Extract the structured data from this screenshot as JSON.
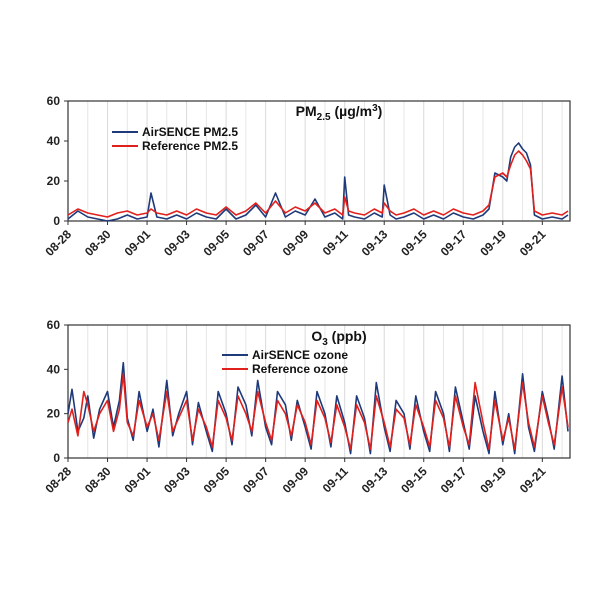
{
  "chart_data": [
    {
      "type": "line",
      "title": "PM",
      "title_sub": "2.5",
      "title_rest": " (µg/m",
      "title_sup": "3",
      "title_end": ")",
      "ylim": [
        0,
        60
      ],
      "yticks": [
        0,
        20,
        40,
        60
      ],
      "xlim": [
        "08-28",
        "09-22"
      ],
      "xticks": [
        "08-28",
        "08-30",
        "09-01",
        "09-03",
        "09-05",
        "09-07",
        "09-09",
        "09-11",
        "09-13",
        "09-15",
        "09-17",
        "09-19",
        "09-21"
      ],
      "grid": "vertical",
      "legend_position": "top-left",
      "series": [
        {
          "name": "AirSENCE PM2.5",
          "color": "#1f3a7a",
          "x": [
            "08-28",
            "08-28.5",
            "08-29",
            "08-29.5",
            "08-30",
            "08-30.5",
            "08-31",
            "08-31.5",
            "09-01",
            "09-01.2",
            "09-01.5",
            "09-02",
            "09-02.5",
            "09-03",
            "09-03.5",
            "09-04",
            "09-04.5",
            "09-05",
            "09-05.5",
            "09-06",
            "09-06.5",
            "09-07",
            "09-07.5",
            "09-08",
            "09-08.5",
            "09-09",
            "09-09.5",
            "09-10",
            "09-10.5",
            "09-10.9",
            "09-11",
            "09-11.2",
            "09-11.5",
            "09-12",
            "09-12.5",
            "09-12.9",
            "09-13",
            "09-13.3",
            "09-13.6",
            "09-14",
            "09-14.5",
            "09-15",
            "09-15.5",
            "09-16",
            "09-16.5",
            "09-17",
            "09-17.5",
            "09-18",
            "09-18.3",
            "09-18.6",
            "09-19",
            "09-19.2",
            "09-19.4",
            "09-19.6",
            "09-19.8",
            "09-20",
            "09-20.2",
            "09-20.4",
            "09-20.6",
            "09-21",
            "09-21.5",
            "09-22",
            "09-22.3"
          ],
          "values": [
            1,
            5,
            2,
            1,
            0,
            1,
            3,
            1,
            2,
            14,
            2,
            1,
            3,
            1,
            4,
            2,
            1,
            6,
            1,
            3,
            8,
            2,
            14,
            2,
            5,
            3,
            11,
            2,
            4,
            1,
            22,
            3,
            2,
            1,
            4,
            2,
            18,
            3,
            1,
            2,
            4,
            1,
            3,
            1,
            4,
            2,
            1,
            3,
            6,
            24,
            22,
            20,
            32,
            37,
            39,
            36,
            34,
            28,
            3,
            1,
            2,
            1,
            3
          ]
        },
        {
          "name": "Reference PM2.5",
          "color": "#e0201c",
          "x": [
            "08-28",
            "08-28.5",
            "08-29",
            "08-29.5",
            "08-30",
            "08-30.5",
            "08-31",
            "08-31.5",
            "09-01",
            "09-01.2",
            "09-01.5",
            "09-02",
            "09-02.5",
            "09-03",
            "09-03.5",
            "09-04",
            "09-04.5",
            "09-05",
            "09-05.5",
            "09-06",
            "09-06.5",
            "09-07",
            "09-07.5",
            "09-08",
            "09-08.5",
            "09-09",
            "09-09.5",
            "09-10",
            "09-10.5",
            "09-10.9",
            "09-11",
            "09-11.2",
            "09-11.5",
            "09-12",
            "09-12.5",
            "09-12.9",
            "09-13",
            "09-13.3",
            "09-13.6",
            "09-14",
            "09-14.5",
            "09-15",
            "09-15.5",
            "09-16",
            "09-16.5",
            "09-17",
            "09-17.5",
            "09-18",
            "09-18.3",
            "09-18.6",
            "09-19",
            "09-19.2",
            "09-19.4",
            "09-19.6",
            "09-19.8",
            "09-20",
            "09-20.2",
            "09-20.4",
            "09-20.6",
            "09-21",
            "09-21.5",
            "09-22",
            "09-22.3"
          ],
          "values": [
            3,
            6,
            4,
            3,
            2,
            4,
            5,
            3,
            4,
            6,
            4,
            3,
            5,
            3,
            6,
            4,
            3,
            7,
            3,
            5,
            9,
            4,
            10,
            4,
            7,
            5,
            9,
            4,
            6,
            3,
            12,
            5,
            4,
            3,
            6,
            4,
            9,
            5,
            3,
            4,
            6,
            3,
            5,
            3,
            6,
            4,
            3,
            5,
            8,
            22,
            24,
            22,
            28,
            33,
            35,
            33,
            30,
            26,
            5,
            3,
            4,
            3,
            5
          ]
        }
      ]
    },
    {
      "type": "line",
      "title": "O",
      "title_sub": "3",
      "title_rest": " (ppb)",
      "title_sup": "",
      "title_end": "",
      "ylim": [
        0,
        60
      ],
      "yticks": [
        0,
        20,
        40,
        60
      ],
      "xlim": [
        "08-28",
        "09-22"
      ],
      "xticks": [
        "08-28",
        "08-30",
        "09-01",
        "09-03",
        "09-05",
        "09-07",
        "09-09",
        "09-11",
        "09-13",
        "09-15",
        "09-17",
        "09-19",
        "09-21"
      ],
      "grid": "vertical",
      "legend_position": "top-center",
      "series": [
        {
          "name": "AirSENCE ozone",
          "color": "#1f3a7a",
          "x": [
            "08-28",
            "08-28.2",
            "08-28.5",
            "08-28.8",
            "08-29",
            "08-29.3",
            "08-29.6",
            "08-30",
            "08-30.3",
            "08-30.6",
            "08-30.8",
            "08-31",
            "08-31.3",
            "08-31.6",
            "09-01",
            "09-01.3",
            "09-01.6",
            "09-02",
            "09-02.3",
            "09-02.6",
            "09-03",
            "09-03.3",
            "09-03.6",
            "09-04",
            "09-04.3",
            "09-04.6",
            "09-05",
            "09-05.3",
            "09-05.6",
            "09-06",
            "09-06.3",
            "09-06.6",
            "09-07",
            "09-07.3",
            "09-07.6",
            "09-08",
            "09-08.3",
            "09-08.6",
            "09-09",
            "09-09.3",
            "09-09.6",
            "09-10",
            "09-10.3",
            "09-10.6",
            "09-11",
            "09-11.3",
            "09-11.6",
            "09-12",
            "09-12.3",
            "09-12.6",
            "09-13",
            "09-13.3",
            "09-13.6",
            "09-14",
            "09-14.3",
            "09-14.6",
            "09-15",
            "09-15.3",
            "09-15.6",
            "09-16",
            "09-16.3",
            "09-16.6",
            "09-17",
            "09-17.3",
            "09-17.6",
            "09-18",
            "09-18.3",
            "09-18.6",
            "09-19",
            "09-19.3",
            "09-19.6",
            "09-20",
            "09-20.3",
            "09-20.6",
            "09-21",
            "09-21.3",
            "09-21.6",
            "09-22",
            "09-22.3"
          ],
          "values": [
            20,
            31,
            12,
            18,
            28,
            9,
            22,
            30,
            14,
            26,
            43,
            18,
            8,
            30,
            12,
            22,
            5,
            35,
            10,
            20,
            30,
            6,
            25,
            12,
            3,
            30,
            20,
            6,
            32,
            24,
            10,
            35,
            14,
            6,
            30,
            24,
            8,
            26,
            14,
            4,
            30,
            20,
            5,
            28,
            16,
            2,
            28,
            18,
            2,
            34,
            14,
            3,
            26,
            20,
            4,
            28,
            12,
            3,
            30,
            20,
            3,
            32,
            16,
            4,
            28,
            12,
            2,
            30,
            6,
            20,
            2,
            38,
            14,
            3,
            30,
            18,
            4,
            37,
            12
          ]
        },
        {
          "name": "Reference ozone",
          "color": "#e0201c",
          "x": [
            "08-28",
            "08-28.2",
            "08-28.5",
            "08-28.8",
            "08-29",
            "08-29.3",
            "08-29.6",
            "08-30",
            "08-30.3",
            "08-30.6",
            "08-30.8",
            "08-31",
            "08-31.3",
            "08-31.6",
            "09-01",
            "09-01.3",
            "09-01.6",
            "09-02",
            "09-02.3",
            "09-02.6",
            "09-03",
            "09-03.3",
            "09-03.6",
            "09-04",
            "09-04.3",
            "09-04.6",
            "09-05",
            "09-05.3",
            "09-05.6",
            "09-06",
            "09-06.3",
            "09-06.6",
            "09-07",
            "09-07.3",
            "09-07.6",
            "09-08",
            "09-08.3",
            "09-08.6",
            "09-09",
            "09-09.3",
            "09-09.6",
            "09-10",
            "09-10.3",
            "09-10.6",
            "09-11",
            "09-11.3",
            "09-11.6",
            "09-12",
            "09-12.3",
            "09-12.6",
            "09-13",
            "09-13.3",
            "09-13.6",
            "09-14",
            "09-14.3",
            "09-14.6",
            "09-15",
            "09-15.3",
            "09-15.6",
            "09-16",
            "09-16.3",
            "09-16.6",
            "09-17",
            "09-17.3",
            "09-17.6",
            "09-18",
            "09-18.3",
            "09-18.6",
            "09-19",
            "09-19.3",
            "09-19.6",
            "09-20",
            "09-20.3",
            "09-20.6",
            "09-21",
            "09-21.3",
            "09-21.6",
            "09-22",
            "09-22.3"
          ],
          "values": [
            16,
            22,
            10,
            30,
            24,
            12,
            20,
            26,
            12,
            22,
            38,
            16,
            10,
            26,
            14,
            20,
            8,
            30,
            12,
            18,
            26,
            8,
            22,
            14,
            5,
            26,
            18,
            8,
            28,
            20,
            12,
            30,
            16,
            8,
            26,
            20,
            10,
            24,
            16,
            6,
            26,
            18,
            7,
            24,
            14,
            4,
            24,
            16,
            4,
            28,
            16,
            5,
            22,
            18,
            6,
            24,
            14,
            5,
            26,
            18,
            5,
            28,
            14,
            6,
            34,
            16,
            4,
            26,
            8,
            18,
            4,
            34,
            16,
            5,
            28,
            16,
            6,
            32,
            14
          ]
        }
      ]
    }
  ]
}
